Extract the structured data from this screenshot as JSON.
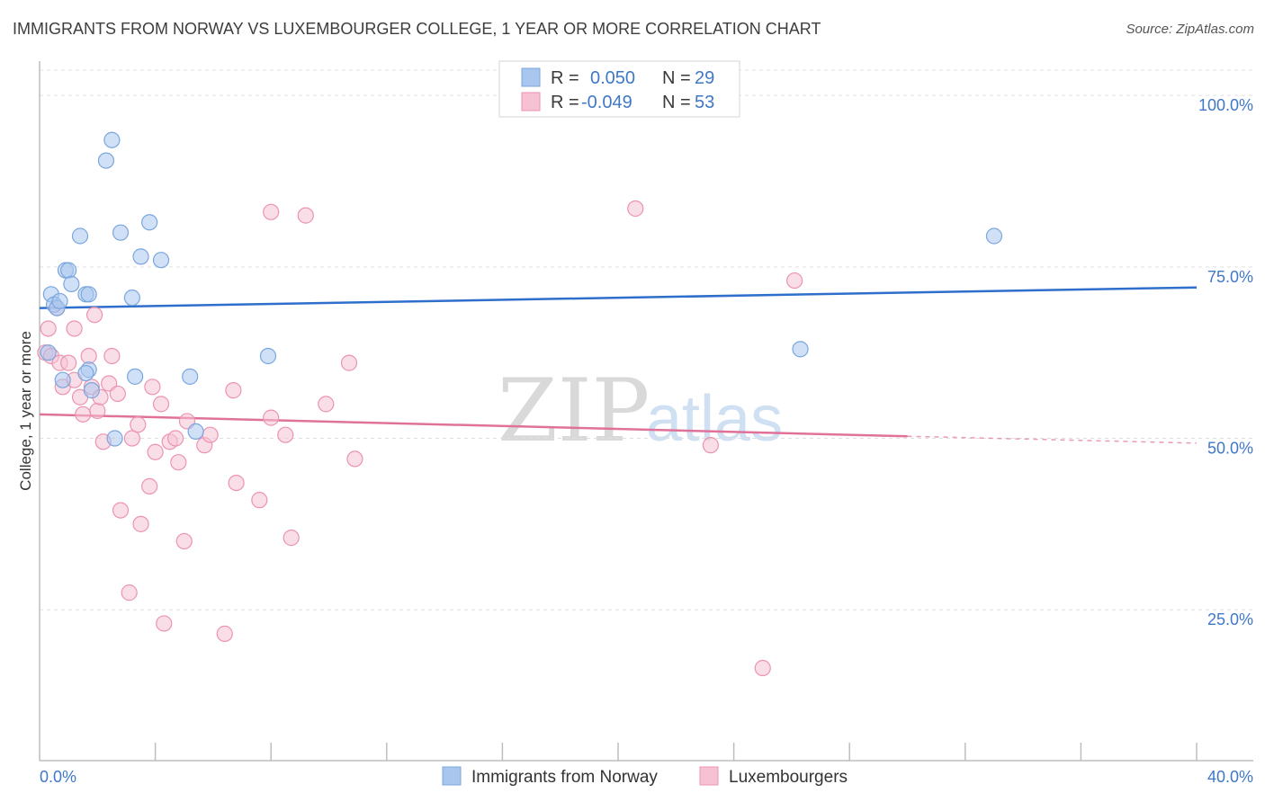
{
  "title": "IMMIGRANTS FROM NORWAY VS LUXEMBOURGER COLLEGE, 1 YEAR OR MORE CORRELATION CHART",
  "source": "Source: ZipAtlas.com",
  "colors": {
    "blue_fill": "#a9c7ee",
    "blue_stroke": "#7aa6de",
    "blue_line": "#2f6fcc",
    "pink_fill": "#f6c2d3",
    "pink_stroke": "#ec93b2",
    "pink_line": "#e0729a",
    "grid": "#e0e0e0",
    "axis_label": "#3f78c9"
  },
  "legend": {
    "r_label": "R =",
    "n_label": "N =",
    "series": [
      {
        "r": "0.050",
        "n": "29"
      },
      {
        "r": "-0.049",
        "n": "53"
      }
    ]
  },
  "watermark": {
    "zip": "ZIP",
    "atlas": "atlas"
  },
  "chart_data": {
    "type": "scatter",
    "title": "IMMIGRANTS FROM NORWAY VS LUXEMBOURGER COLLEGE, 1 YEAR OR MORE CORRELATION CHART",
    "xlabel": "",
    "ylabel": "College, 1 year or more",
    "xlim": [
      0,
      40
    ],
    "ylim": [
      3,
      105
    ],
    "x_tick_labels": [
      "0.0%",
      "40.0%"
    ],
    "y_ticks": [
      25,
      50,
      75,
      100
    ],
    "y_tick_labels": [
      "25.0%",
      "50.0%",
      "75.0%",
      "100.0%"
    ],
    "grid": true,
    "legend_position": "top-center",
    "series": [
      {
        "name": "Immigrants from Norway",
        "color": "blue",
        "points": [
          [
            0.3,
            62.5
          ],
          [
            0.4,
            71.0
          ],
          [
            0.5,
            69.5
          ],
          [
            0.6,
            69.0
          ],
          [
            0.7,
            70.0
          ],
          [
            0.9,
            74.5
          ],
          [
            1.0,
            74.5
          ],
          [
            1.1,
            72.5
          ],
          [
            1.4,
            79.5
          ],
          [
            1.6,
            71.0
          ],
          [
            1.7,
            71.0
          ],
          [
            1.8,
            57.0
          ],
          [
            1.7,
            60.0
          ],
          [
            2.3,
            90.5
          ],
          [
            2.5,
            93.5
          ],
          [
            2.8,
            80.0
          ],
          [
            3.2,
            70.5
          ],
          [
            3.5,
            76.5
          ],
          [
            3.8,
            81.5
          ],
          [
            4.2,
            76.0
          ],
          [
            5.2,
            59.0
          ],
          [
            5.4,
            51.0
          ],
          [
            2.6,
            50.0
          ],
          [
            3.3,
            59.0
          ],
          [
            0.8,
            58.5
          ],
          [
            1.6,
            59.5
          ],
          [
            7.9,
            62.0
          ],
          [
            26.3,
            63.0
          ],
          [
            33.0,
            79.5
          ]
        ],
        "trend": {
          "x0": 0,
          "y0": 69.0,
          "x1": 40,
          "y1": 72.0
        }
      },
      {
        "name": "Luxembourgers",
        "color": "pink",
        "points": [
          [
            0.2,
            62.5
          ],
          [
            0.3,
            66.0
          ],
          [
            0.4,
            62.0
          ],
          [
            0.6,
            69.0
          ],
          [
            0.7,
            61.0
          ],
          [
            0.8,
            57.5
          ],
          [
            1.0,
            61.0
          ],
          [
            1.2,
            58.5
          ],
          [
            1.2,
            66.0
          ],
          [
            1.4,
            56.0
          ],
          [
            1.5,
            53.5
          ],
          [
            1.7,
            62.0
          ],
          [
            1.8,
            57.5
          ],
          [
            1.9,
            68.0
          ],
          [
            2.0,
            54.0
          ],
          [
            2.1,
            56.0
          ],
          [
            2.2,
            49.5
          ],
          [
            2.4,
            58.0
          ],
          [
            2.5,
            62.0
          ],
          [
            2.7,
            56.5
          ],
          [
            2.8,
            39.5
          ],
          [
            3.1,
            27.5
          ],
          [
            3.2,
            50.0
          ],
          [
            3.4,
            52.0
          ],
          [
            3.5,
            37.5
          ],
          [
            3.8,
            43.0
          ],
          [
            3.9,
            57.5
          ],
          [
            4.0,
            48.0
          ],
          [
            4.2,
            55.0
          ],
          [
            4.3,
            23.0
          ],
          [
            4.5,
            49.5
          ],
          [
            4.7,
            50.0
          ],
          [
            4.8,
            46.5
          ],
          [
            5.0,
            35.0
          ],
          [
            5.1,
            52.5
          ],
          [
            5.7,
            49.0
          ],
          [
            5.9,
            50.5
          ],
          [
            6.4,
            21.5
          ],
          [
            6.7,
            57.0
          ],
          [
            6.8,
            43.5
          ],
          [
            7.6,
            41.0
          ],
          [
            8.0,
            53.0
          ],
          [
            8.0,
            83.0
          ],
          [
            8.5,
            50.5
          ],
          [
            8.7,
            35.5
          ],
          [
            9.2,
            82.5
          ],
          [
            9.9,
            55.0
          ],
          [
            10.7,
            61.0
          ],
          [
            10.9,
            47.0
          ],
          [
            20.6,
            83.5
          ],
          [
            23.2,
            49.0
          ],
          [
            25.0,
            16.5
          ],
          [
            26.1,
            73.0
          ]
        ],
        "trend": {
          "x0": 0,
          "y0": 53.5,
          "x1": 30,
          "y1": 50.3
        },
        "trend_dashed": {
          "x0": 30,
          "y0": 50.3,
          "x1": 40,
          "y1": 49.3
        }
      }
    ]
  }
}
